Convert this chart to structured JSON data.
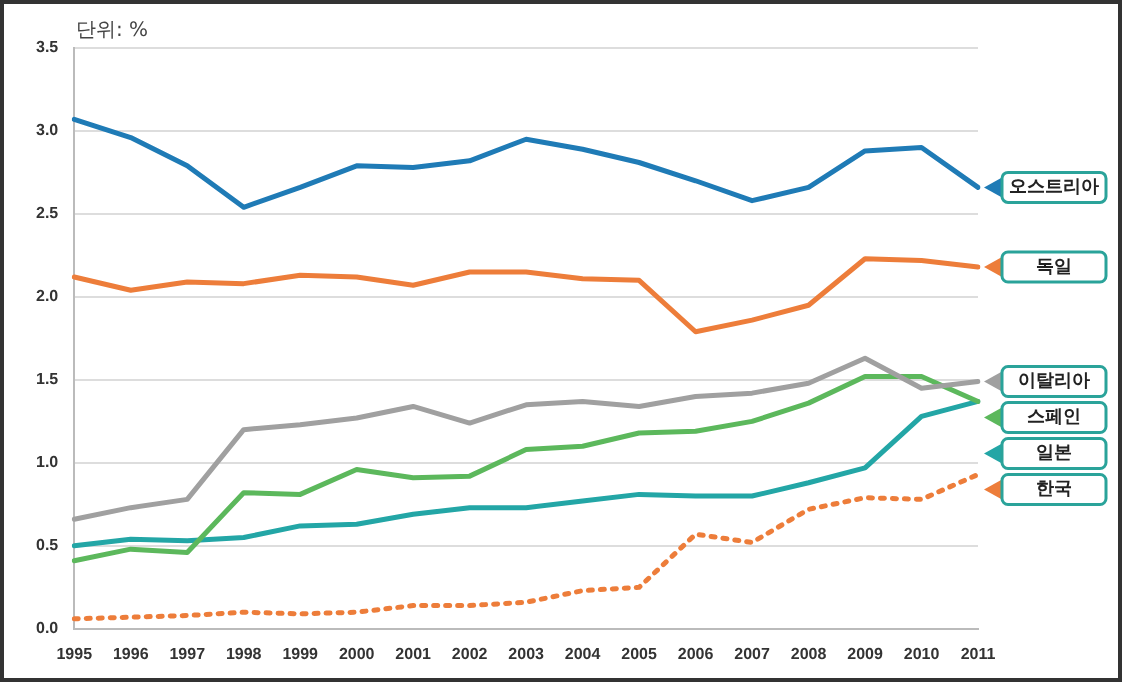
{
  "chart_data": {
    "type": "line",
    "annotations": [
      "단위: %"
    ],
    "categories": [
      "1995",
      "1996",
      "1997",
      "1998",
      "1999",
      "2000",
      "2001",
      "2002",
      "2003",
      "2004",
      "2005",
      "2006",
      "2007",
      "2008",
      "2009",
      "2010",
      "2011"
    ],
    "series": [
      {
        "name": "오스트리아",
        "color": "#1f7bb6",
        "values": [
          3.07,
          2.96,
          2.79,
          2.54,
          2.66,
          2.79,
          2.78,
          2.82,
          2.95,
          2.89,
          2.81,
          2.7,
          2.58,
          2.66,
          2.88,
          2.9,
          2.66
        ]
      },
      {
        "name": "독일",
        "color": "#ed7d3a",
        "values": [
          2.12,
          2.04,
          2.09,
          2.08,
          2.13,
          2.12,
          2.07,
          2.15,
          2.15,
          2.11,
          2.1,
          1.79,
          1.86,
          1.95,
          2.23,
          2.22,
          2.18
        ]
      },
      {
        "name": "이탈리아",
        "color": "#a0a0a0",
        "values": [
          0.66,
          0.73,
          0.78,
          1.2,
          1.23,
          1.27,
          1.34,
          1.24,
          1.35,
          1.37,
          1.34,
          1.4,
          1.42,
          1.48,
          1.63,
          1.45,
          1.49
        ]
      },
      {
        "name": "스페인",
        "color": "#5cb85c",
        "values": [
          0.41,
          0.48,
          0.46,
          0.82,
          0.81,
          0.96,
          0.91,
          0.92,
          1.08,
          1.1,
          1.18,
          1.19,
          1.25,
          1.36,
          1.52,
          1.52,
          1.37
        ]
      },
      {
        "name": "일본",
        "color": "#23a6a6",
        "values": [
          0.5,
          0.54,
          0.53,
          0.55,
          0.62,
          0.63,
          0.69,
          0.73,
          0.73,
          0.77,
          0.81,
          0.8,
          0.8,
          0.88,
          0.97,
          1.28,
          1.37
        ]
      },
      {
        "name": "한국",
        "color": "#ed7d3a",
        "line_style": "dotted",
        "values": [
          0.06,
          0.07,
          0.08,
          0.1,
          0.09,
          0.1,
          0.14,
          0.14,
          0.16,
          0.23,
          0.25,
          0.57,
          0.52,
          0.72,
          0.79,
          0.78,
          0.93
        ]
      }
    ],
    "ylim": [
      0,
      3.5
    ],
    "yticks": [
      {
        "value": 0,
        "label": "0.0"
      },
      {
        "value": 0.5,
        "label": "0.5"
      },
      {
        "value": 1,
        "label": "1.0"
      },
      {
        "value": 1.5,
        "label": "1.5"
      },
      {
        "value": 2,
        "label": "2.0"
      },
      {
        "value": 2.5,
        "label": "2.5"
      },
      {
        "value": 3,
        "label": "3.0"
      },
      {
        "value": 3.5,
        "label": "3.5"
      }
    ],
    "grid": "y",
    "legend": "right",
    "marker": "none"
  }
}
